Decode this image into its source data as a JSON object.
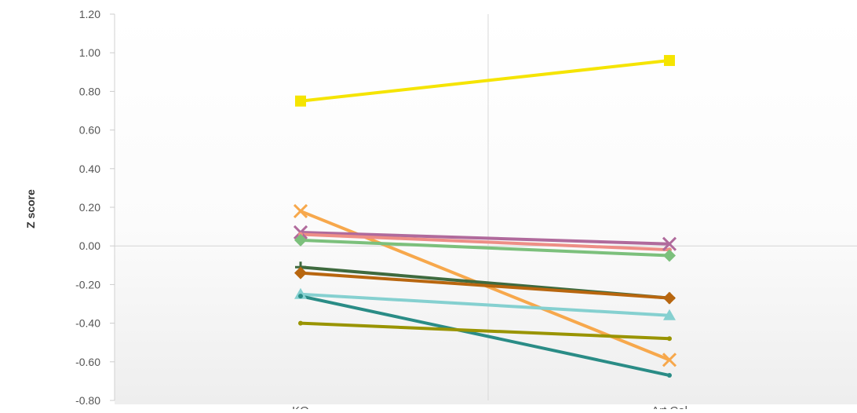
{
  "chart_data": {
    "type": "line",
    "title": "",
    "xlabel": "",
    "ylabel": "Z score",
    "categories": [
      "KO",
      "Art Cal"
    ],
    "ylim": [
      -0.8,
      1.2
    ],
    "yticks": [
      1.2,
      1.0,
      0.8,
      0.6,
      0.4,
      0.2,
      0.0,
      -0.2,
      -0.4,
      -0.6,
      -0.8
    ],
    "ytick_labels": [
      "1.20",
      "1.00",
      "0.80",
      "0.60",
      "0.40",
      "0.20",
      "0.00",
      "-0.20",
      "-0.40",
      "-0.60",
      "-0.80"
    ],
    "grid": true,
    "legend": "none",
    "series": [
      {
        "values": [
          0.75,
          0.96
        ],
        "color": "#f5e400",
        "marker": "square"
      },
      {
        "values": [
          0.18,
          -0.59
        ],
        "color": "#f7a84c",
        "marker": "x"
      },
      {
        "values": [
          0.07,
          0.01
        ],
        "color": "#b06a9c",
        "marker": "x"
      },
      {
        "values": [
          0.06,
          -0.02
        ],
        "color": "#ee8e86",
        "marker": "none"
      },
      {
        "values": [
          0.03,
          -0.05
        ],
        "color": "#7cc07c",
        "marker": "diamond"
      },
      {
        "values": [
          -0.11,
          -0.27
        ],
        "color": "#3e6a3e",
        "marker": "plus"
      },
      {
        "values": [
          -0.14,
          -0.27
        ],
        "color": "#b8660f",
        "marker": "diamond"
      },
      {
        "values": [
          -0.25,
          -0.36
        ],
        "color": "#85d0d0",
        "marker": "triangle"
      },
      {
        "values": [
          -0.26,
          -0.67
        ],
        "color": "#2a8c86",
        "marker": "none"
      },
      {
        "values": [
          -0.4,
          -0.48
        ],
        "color": "#999400",
        "marker": "none"
      }
    ]
  }
}
